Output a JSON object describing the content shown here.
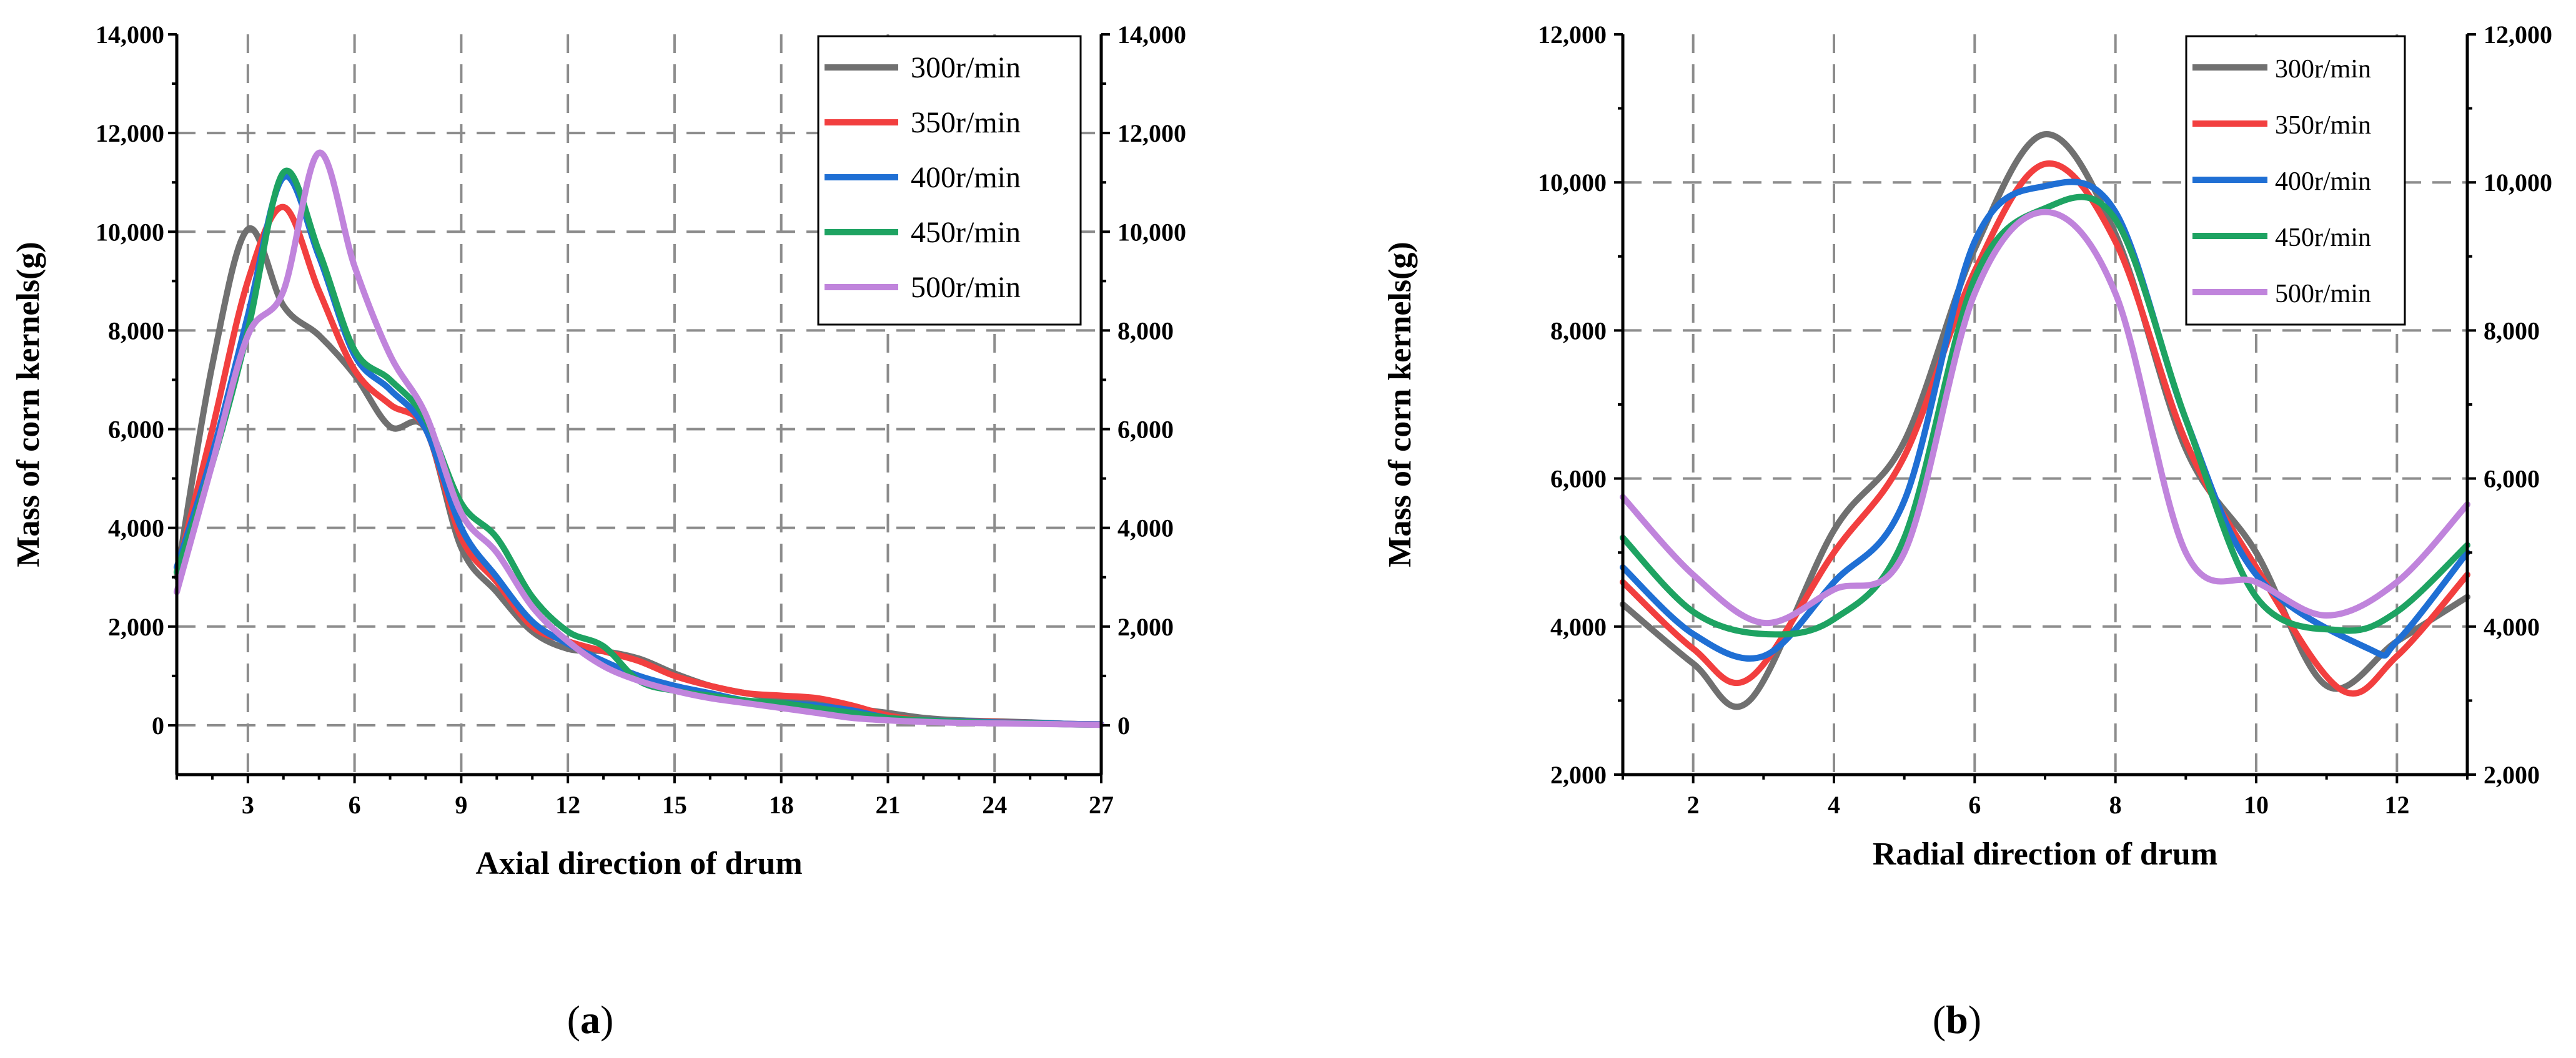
{
  "chart_data": [
    {
      "type": "line",
      "panel_label_pre": "(",
      "panel_label_letter": "a",
      "panel_label_post": ")",
      "xlabel": "Axial direction of drum",
      "ylabel": "Mass of corn kernels(g)",
      "xlim": [
        1,
        27
      ],
      "ylim": [
        -1000,
        14000
      ],
      "xticks": [
        3,
        6,
        9,
        12,
        15,
        18,
        21,
        24,
        27
      ],
      "yticks": [
        0,
        2000,
        4000,
        6000,
        8000,
        10000,
        12000,
        14000
      ],
      "ytick_labels": [
        "0",
        "2,000",
        "4,000",
        "6,000",
        "8,000",
        "10,000",
        "12,000",
        "14,000"
      ],
      "grid": true,
      "legend_position": "top-right",
      "series": [
        {
          "name": "300r/min",
          "color": "#707070",
          "x": [
            1,
            2,
            3,
            4,
            5,
            6,
            7,
            8,
            9,
            10,
            11,
            12,
            13,
            14,
            15,
            16,
            17,
            18,
            19,
            20,
            21,
            22,
            23,
            24,
            25,
            26,
            27
          ],
          "y": [
            3000,
            7300,
            10050,
            8500,
            7900,
            7100,
            6050,
            6000,
            3600,
            2700,
            1900,
            1550,
            1500,
            1350,
            1050,
            800,
            650,
            550,
            500,
            350,
            250,
            150,
            100,
            80,
            60,
            30,
            20
          ]
        },
        {
          "name": "350r/min",
          "color": "#f23f3f",
          "x": [
            1,
            2,
            3,
            4,
            5,
            6,
            7,
            8,
            9,
            10,
            11,
            12,
            13,
            14,
            15,
            16,
            17,
            18,
            19,
            20,
            21,
            22,
            23,
            24,
            25,
            26,
            27
          ],
          "y": [
            3100,
            6000,
            9000,
            10500,
            8800,
            7200,
            6500,
            6000,
            3800,
            2900,
            2000,
            1700,
            1500,
            1300,
            1000,
            800,
            650,
            600,
            550,
            400,
            200,
            100,
            80,
            70,
            50,
            30,
            20
          ]
        },
        {
          "name": "400r/min",
          "color": "#1f6fd4",
          "x": [
            1,
            2,
            3,
            4,
            5,
            6,
            7,
            8,
            9,
            10,
            11,
            12,
            13,
            14,
            15,
            16,
            17,
            18,
            19,
            20,
            21,
            22,
            23,
            24,
            25,
            26,
            27
          ],
          "y": [
            3200,
            5500,
            8300,
            11100,
            9500,
            7500,
            6800,
            6000,
            4000,
            3000,
            2100,
            1650,
            1300,
            1000,
            800,
            650,
            500,
            450,
            400,
            300,
            150,
            100,
            80,
            60,
            50,
            30,
            20
          ]
        },
        {
          "name": "450r/min",
          "color": "#1ea362",
          "x": [
            1,
            2,
            3,
            4,
            5,
            6,
            7,
            8,
            9,
            10,
            11,
            12,
            13,
            14,
            15,
            16,
            17,
            18,
            19,
            20,
            21,
            22,
            23,
            24,
            25,
            26,
            27
          ],
          "y": [
            3100,
            5300,
            8000,
            11200,
            9600,
            7600,
            7000,
            6200,
            4500,
            3800,
            2600,
            1900,
            1600,
            900,
            700,
            600,
            500,
            450,
            350,
            250,
            150,
            100,
            70,
            50,
            40,
            20,
            10
          ]
        },
        {
          "name": "500r/min",
          "color": "#c084dc",
          "x": [
            1,
            2,
            3,
            4,
            5,
            6,
            7,
            8,
            9,
            10,
            11,
            12,
            13,
            14,
            15,
            16,
            17,
            18,
            19,
            20,
            21,
            22,
            23,
            24,
            25,
            26,
            27
          ],
          "y": [
            2700,
            5300,
            7900,
            8800,
            11600,
            9300,
            7500,
            6300,
            4300,
            3500,
            2400,
            1700,
            1200,
            900,
            700,
            550,
            450,
            350,
            250,
            150,
            100,
            70,
            50,
            40,
            30,
            20,
            10
          ]
        }
      ]
    },
    {
      "type": "line",
      "panel_label_pre": "(",
      "panel_label_letter": "b",
      "panel_label_post": ")",
      "xlabel": "Radial  direction of drum",
      "ylabel": "Mass of corn kernels(g)",
      "xlim": [
        1,
        13
      ],
      "ylim": [
        2000,
        12000
      ],
      "xticks": [
        2,
        4,
        6,
        8,
        10,
        12
      ],
      "yticks": [
        2000,
        4000,
        6000,
        8000,
        10000,
        12000
      ],
      "ytick_labels": [
        "2,000",
        "4,000",
        "6,000",
        "8,000",
        "10,000",
        "12,000"
      ],
      "grid": true,
      "legend_position": "top-right",
      "series": [
        {
          "name": "300r/min",
          "color": "#707070",
          "x": [
            1,
            2,
            2.8,
            4,
            5,
            6,
            7,
            8,
            9,
            10,
            11,
            12,
            13
          ],
          "y": [
            4300,
            3500,
            3000,
            5300,
            6500,
            9100,
            10650,
            9300,
            6400,
            5000,
            3200,
            3800,
            4400
          ]
        },
        {
          "name": "350r/min",
          "color": "#f23f3f",
          "x": [
            1,
            2,
            2.8,
            4,
            5,
            6,
            7,
            8,
            9,
            10,
            11.2,
            12,
            13
          ],
          "y": [
            4600,
            3700,
            3300,
            5000,
            6300,
            8800,
            10250,
            9200,
            6500,
            4800,
            3150,
            3600,
            4700
          ]
        },
        {
          "name": "400r/min",
          "color": "#1f6fd4",
          "x": [
            1,
            2,
            3,
            4,
            5,
            6,
            7,
            8,
            9,
            10,
            11.6,
            12,
            13
          ],
          "y": [
            4800,
            3900,
            3600,
            4600,
            5700,
            9200,
            9950,
            9600,
            6800,
            4700,
            3700,
            3800,
            5000
          ]
        },
        {
          "name": "450r/min",
          "color": "#1ea362",
          "x": [
            1,
            2,
            3,
            4,
            5,
            6,
            7,
            8,
            9,
            10,
            11.2,
            12,
            13
          ],
          "y": [
            5200,
            4200,
            3900,
            4100,
            5200,
            8700,
            9650,
            9500,
            6800,
            4400,
            3950,
            4200,
            5100
          ]
        },
        {
          "name": "500r/min",
          "color": "#c084dc",
          "x": [
            1,
            2,
            3,
            4,
            5,
            6,
            7,
            8,
            9,
            10,
            11,
            12,
            13
          ],
          "y": [
            5750,
            4700,
            4050,
            4500,
            5000,
            8500,
            9600,
            8500,
            5000,
            4600,
            4150,
            4600,
            5650
          ]
        }
      ]
    }
  ]
}
